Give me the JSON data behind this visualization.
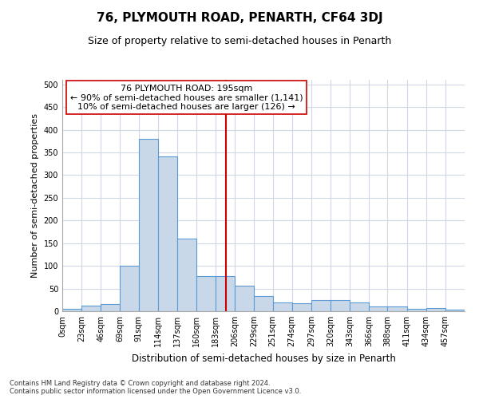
{
  "title1": "76, PLYMOUTH ROAD, PENARTH, CF64 3DJ",
  "title2": "Size of property relative to semi-detached houses in Penarth",
  "xlabel": "Distribution of semi-detached houses by size in Penarth",
  "ylabel": "Number of semi-detached properties",
  "footer1": "Contains HM Land Registry data © Crown copyright and database right 2024.",
  "footer2": "Contains public sector information licensed under the Open Government Licence v3.0.",
  "property_label": "76 PLYMOUTH ROAD: 195sqm",
  "smaller_pct": 90,
  "smaller_count": 1141,
  "larger_pct": 10,
  "larger_count": 126,
  "bin_edges": [
    0,
    23,
    46,
    69,
    91,
    114,
    137,
    160,
    183,
    206,
    229,
    251,
    274,
    297,
    320,
    343,
    366,
    388,
    411,
    434,
    457,
    480
  ],
  "bin_labels": [
    "0sqm",
    "23sqm",
    "46sqm",
    "69sqm",
    "91sqm",
    "114sqm",
    "137sqm",
    "160sqm",
    "183sqm",
    "206sqm",
    "229sqm",
    "251sqm",
    "274sqm",
    "297sqm",
    "320sqm",
    "343sqm",
    "366sqm",
    "388sqm",
    "411sqm",
    "434sqm",
    "457sqm"
  ],
  "bar_heights": [
    5,
    13,
    15,
    100,
    380,
    342,
    160,
    78,
    78,
    57,
    33,
    20,
    17,
    25,
    25,
    20,
    10,
    10,
    5,
    7,
    3
  ],
  "bar_color": "#c8d8e8",
  "bar_edge_color": "#5b9bd5",
  "vline_color": "#cc0000",
  "vline_x": 195,
  "box_color": "#cc0000",
  "ylim": [
    0,
    510
  ],
  "xlim": [
    0,
    480
  ],
  "yticks": [
    0,
    50,
    100,
    150,
    200,
    250,
    300,
    350,
    400,
    450,
    500
  ],
  "grid_color": "#d0d8e8",
  "title1_fontsize": 11,
  "title2_fontsize": 9,
  "ylabel_fontsize": 8,
  "xlabel_fontsize": 8.5,
  "tick_fontsize": 7,
  "annotation_fontsize": 8,
  "footer_fontsize": 6
}
